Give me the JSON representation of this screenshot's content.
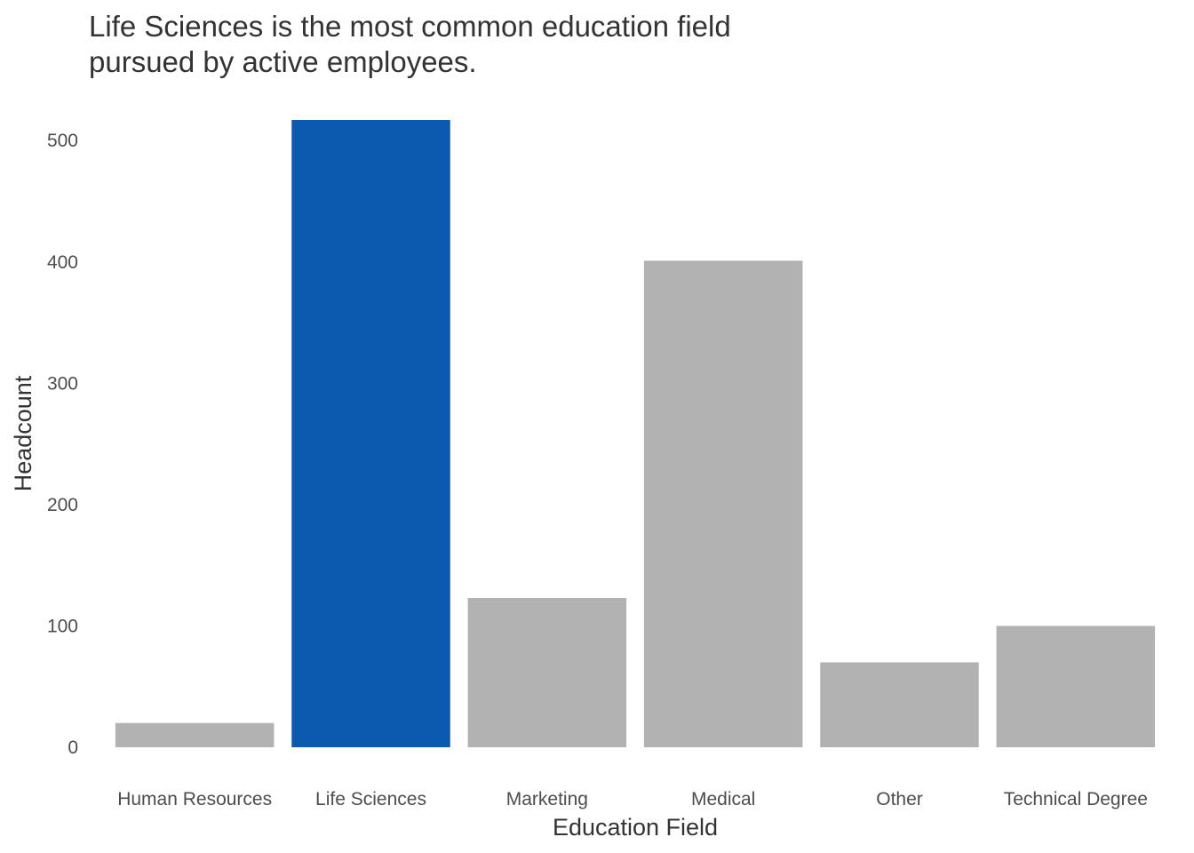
{
  "chart_data": {
    "type": "bar",
    "title_lines": [
      "Life Sciences is the most common education field",
      "pursued by active employees."
    ],
    "xlabel": "Education Field",
    "ylabel": "Headcount",
    "categories": [
      "Human Resources",
      "Life Sciences",
      "Marketing",
      "Medical",
      "Other",
      "Technical Degree"
    ],
    "values": [
      20,
      517,
      123,
      401,
      70,
      100
    ],
    "highlight": "Life Sciences",
    "ylim": [
      0,
      517
    ],
    "yticks": [
      0,
      100,
      200,
      300,
      400,
      500
    ],
    "grid": false,
    "legend": "none",
    "colors": {
      "highlight": "#0b5aaf",
      "default": "#b2b2b2"
    }
  }
}
